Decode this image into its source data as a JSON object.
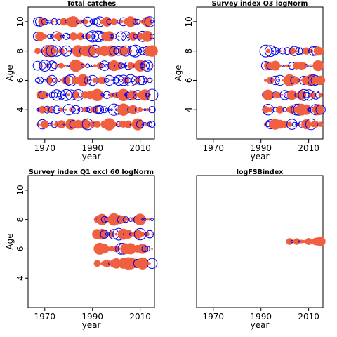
{
  "chart_data": [
    {
      "type": "scatter",
      "title": "Total catches",
      "xlabel": "year",
      "ylabel": "Age",
      "xlim": [
        1963,
        2016
      ],
      "ylim": [
        2,
        11
      ],
      "xticks": [
        "1970",
        "1990",
        "2010"
      ],
      "yticks": [
        "4",
        "6",
        "8",
        "10"
      ],
      "ages": [
        3,
        4,
        5,
        6,
        7,
        8,
        9,
        10
      ],
      "years": [
        1967,
        2015
      ],
      "pattern_seed": 11,
      "series": [
        {
          "name": "",
          "marker": "filled-circle",
          "color": "#f06040"
        },
        {
          "name": "",
          "marker": "open-circle",
          "color": "#0000ee"
        }
      ]
    },
    {
      "type": "scatter",
      "title": "Survey index Q3 logNorm",
      "xlabel": "year",
      "ylabel": "Age",
      "xlim": [
        1963,
        2016
      ],
      "ylim": [
        2,
        11
      ],
      "xticks": [
        "1970",
        "1990",
        "2010"
      ],
      "yticks": [
        "4",
        "6",
        "8",
        "10"
      ],
      "ages": [
        3,
        4,
        5,
        6,
        7,
        8
      ],
      "years": [
        1992,
        2015
      ],
      "pattern_seed": 23,
      "series": [
        {
          "name": "",
          "marker": "filled-circle",
          "color": "#f06040"
        },
        {
          "name": "",
          "marker": "open-circle",
          "color": "#0000ee"
        }
      ]
    },
    {
      "type": "scatter",
      "title": "Survey index Q1 excl 60 logNorm",
      "xlabel": "year",
      "ylabel": "Age",
      "xlim": [
        1963,
        2016
      ],
      "ylim": [
        2,
        11
      ],
      "xticks": [
        "1970",
        "1990",
        "2010"
      ],
      "yticks": [
        "4",
        "6",
        "8",
        "10"
      ],
      "ages": [
        5,
        6,
        7,
        8
      ],
      "years": [
        1992,
        2015
      ],
      "pattern_seed": 37,
      "series": [
        {
          "name": "",
          "marker": "filled-circle",
          "color": "#f06040"
        },
        {
          "name": "",
          "marker": "open-circle",
          "color": "#0000ee"
        }
      ]
    },
    {
      "type": "scatter",
      "title": "logFSBindex",
      "xlabel": "year",
      "ylabel": "",
      "xlim": [
        1963,
        2016
      ],
      "ylim": [
        2,
        11
      ],
      "xticks": [
        "1970",
        "1990",
        "2010"
      ],
      "yticks": [],
      "ages": [
        6.5
      ],
      "years": [
        2001,
        2015
      ],
      "pattern_seed": 53,
      "series": [
        {
          "name": "",
          "marker": "filled-circle",
          "color": "#f06040"
        },
        {
          "name": "",
          "marker": "open-circle",
          "color": "#0000ee"
        }
      ]
    }
  ]
}
